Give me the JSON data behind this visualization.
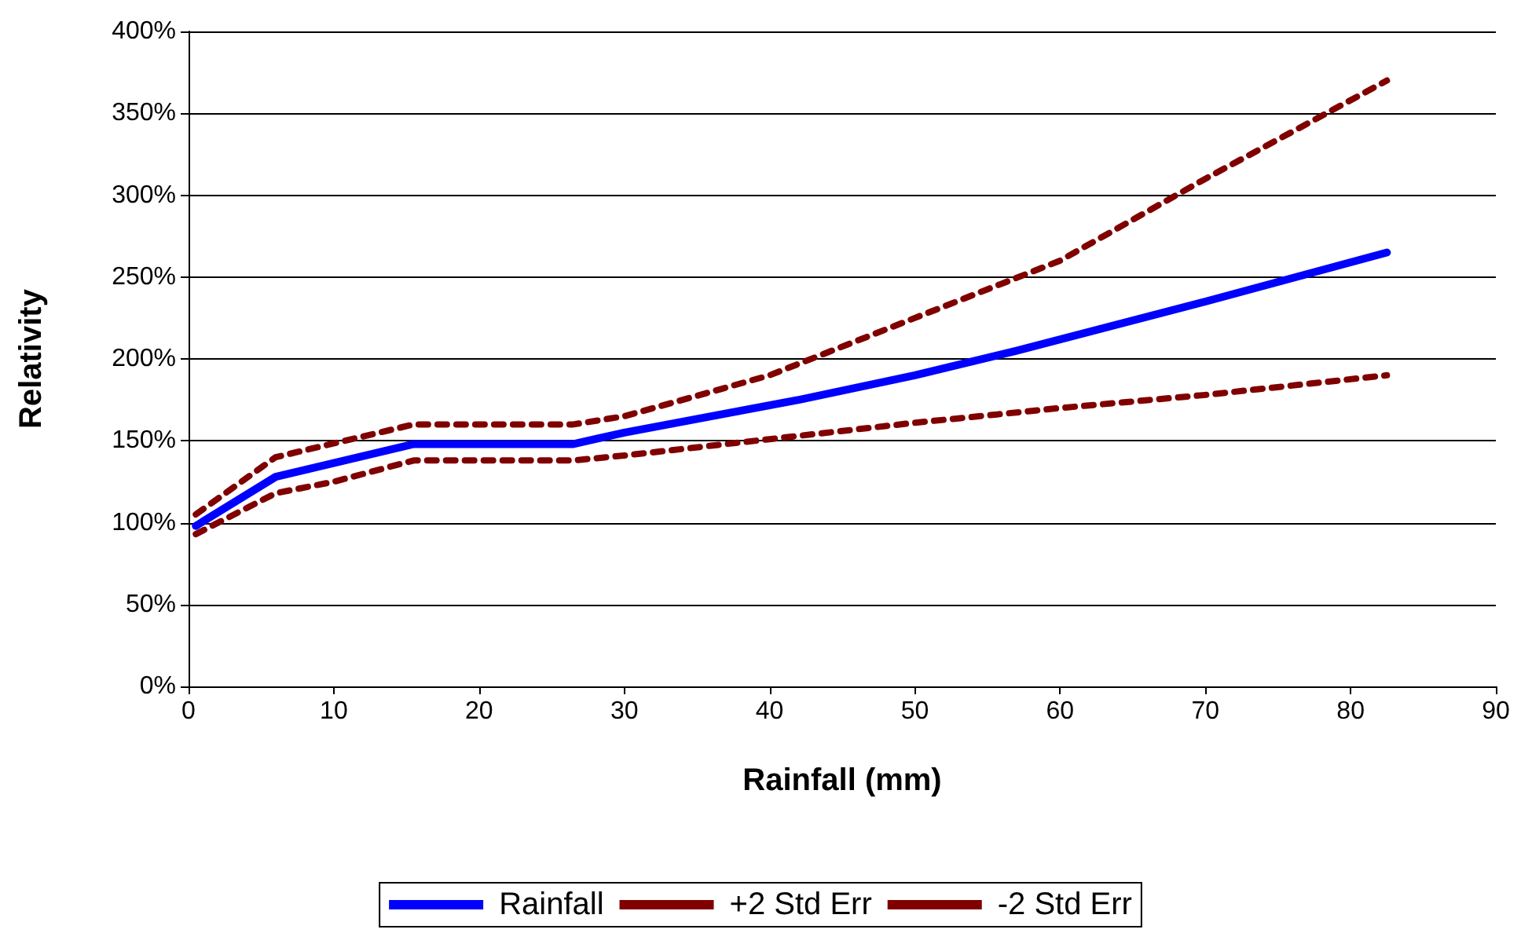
{
  "chart_data": {
    "type": "line",
    "xlabel": "Rainfall (mm)",
    "ylabel": "Relativity",
    "xlim": [
      0,
      90
    ],
    "xticks": [
      0,
      10,
      20,
      30,
      40,
      50,
      60,
      70,
      80,
      90
    ],
    "ylim": [
      0,
      400
    ],
    "yticks": [
      {
        "value": 0,
        "label": "0%"
      },
      {
        "value": 50,
        "label": "50%"
      },
      {
        "value": 100,
        "label": "100%"
      },
      {
        "value": 150,
        "label": "150%"
      },
      {
        "value": 200,
        "label": "200%"
      },
      {
        "value": 250,
        "label": "250%"
      },
      {
        "value": 300,
        "label": "300%"
      },
      {
        "value": 350,
        "label": "350%"
      },
      {
        "value": 400,
        "label": "400%"
      }
    ],
    "grid": "y",
    "legend": "bottom",
    "marker": "none",
    "series": [
      {
        "name": "Rainfall",
        "color": "#0000ff",
        "line_style": "solid",
        "x": [
          0.5,
          6,
          15.5,
          26.5,
          30,
          42,
          50,
          57,
          70,
          82.5
        ],
        "values": [
          98,
          128,
          148,
          148,
          155,
          175,
          190,
          205,
          235,
          265
        ]
      },
      {
        "name": "+2 Std Err",
        "color": "#800000",
        "line_style": "dashed",
        "x": [
          0.5,
          6,
          15.5,
          26.5,
          30,
          40,
          50,
          60,
          70,
          82.5
        ],
        "values": [
          105,
          140,
          160,
          160,
          165,
          190,
          225,
          260,
          310,
          370
        ]
      },
      {
        "name": "-2 Std Err",
        "color": "#800000",
        "line_style": "dashed",
        "x": [
          0.5,
          6,
          10,
          15.5,
          26.5,
          30,
          40,
          50,
          60,
          70,
          82.5
        ],
        "values": [
          93,
          118,
          125,
          138,
          138,
          141,
          151,
          161,
          170,
          178,
          190
        ]
      }
    ]
  }
}
